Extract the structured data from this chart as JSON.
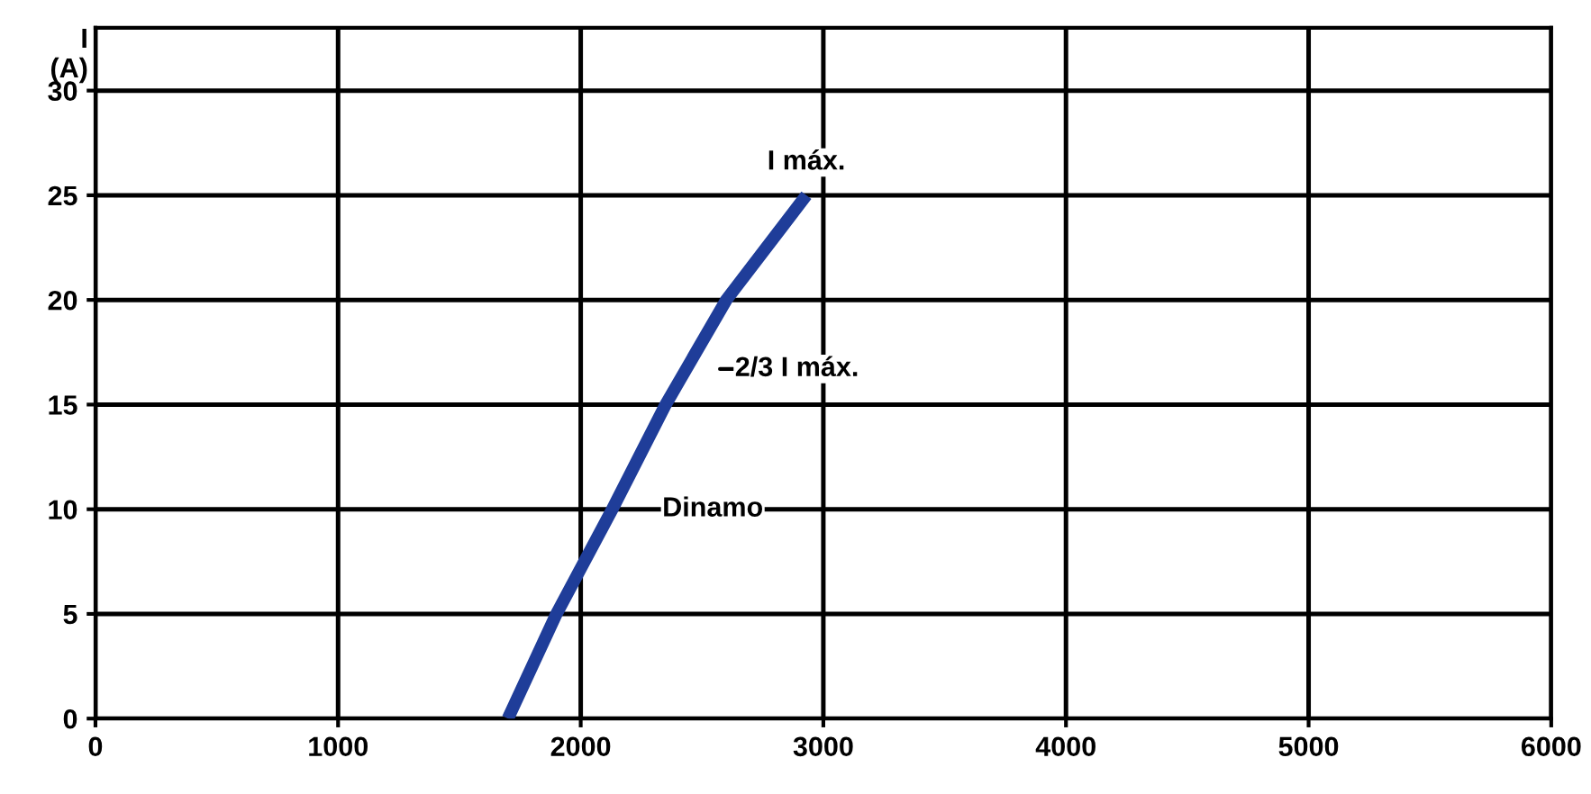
{
  "chart_data": {
    "type": "line",
    "ylabel": "I\n(A)",
    "x": [
      1700,
      1900,
      2130,
      2350,
      2600,
      2930
    ],
    "series": [
      {
        "color": "#1f3d99",
        "values": [
          0,
          5,
          10,
          15,
          20,
          25
        ]
      }
    ],
    "xlim": [
      0,
      6000
    ],
    "ylim": [
      0,
      33
    ],
    "xticks": [
      0,
      1000,
      2000,
      3000,
      4000,
      5000,
      6000
    ],
    "yticks": [
      0,
      5,
      10,
      15,
      20,
      25,
      30
    ],
    "grid": true,
    "legend": false,
    "marker": "none",
    "line_style": "solid",
    "annotations": [
      {
        "text": "I máx.",
        "x": 2930,
        "y": 25
      },
      {
        "text": "2/3 I máx.",
        "x": 2450,
        "y": 16.7
      },
      {
        "text": "Dinamo",
        "x": 2130,
        "y": 10
      }
    ]
  }
}
